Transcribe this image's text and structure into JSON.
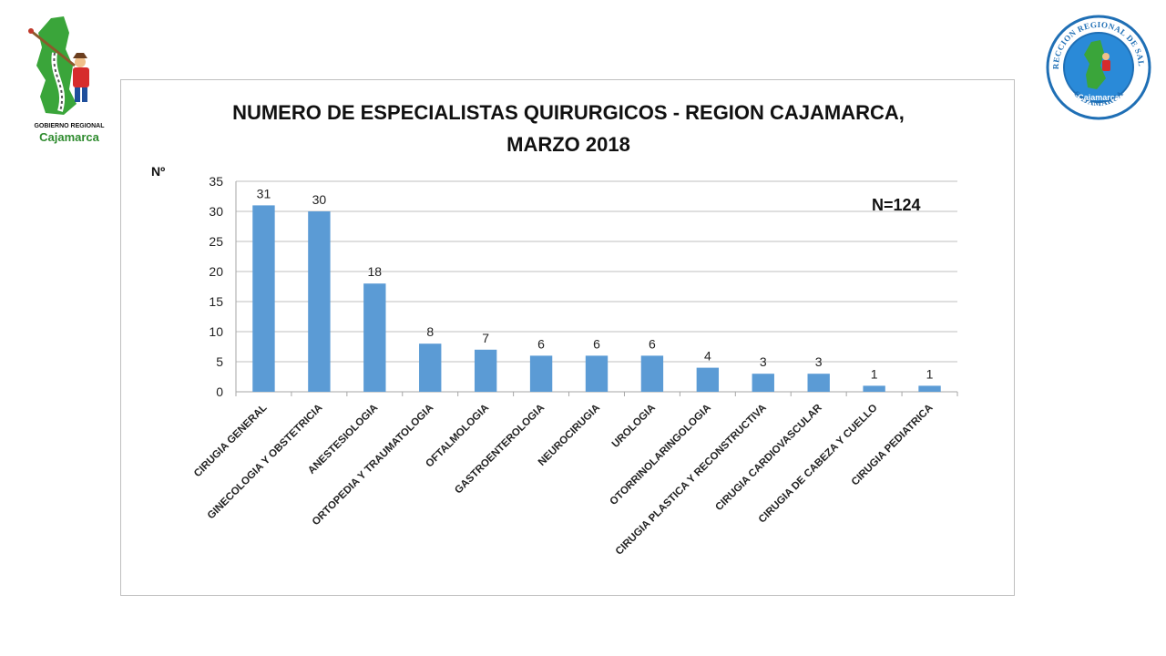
{
  "logos": {
    "left": {
      "line1": "GOBIERNO REGIONAL",
      "line2": "Cajamarca"
    },
    "right": {
      "ring_top": "DIRECCION REGIONAL DE SALUD",
      "ring_bottom": "CAJAMARCA",
      "center": "Cajamarca"
    }
  },
  "colors": {
    "bar": "#5b9bd5",
    "grid": "#bfbfbf",
    "text": "#222222",
    "logo_green": "#3aa53a",
    "logo_blue": "#1f6fb5"
  },
  "chart_data": {
    "type": "bar",
    "title": "NUMERO DE ESPECIALISTAS QUIRURGICOS - REGION CAJAMARCA, MARZO 2018",
    "title_lines": [
      "NUMERO DE ESPECIALISTAS QUIRURGICOS - REGION CAJAMARCA,",
      "MARZO 2018"
    ],
    "ylabel": "Nº",
    "xlabel": "",
    "annotation": "N=124",
    "ylim": [
      0,
      35
    ],
    "yticks": [
      0,
      5,
      10,
      15,
      20,
      25,
      30,
      35
    ],
    "grid": true,
    "categories": [
      "CIRUGIA GENERAL",
      "GINECOLOGIA Y OBSTETRICIA",
      "ANESTESIOLOGIA",
      "ORTOPEDIA Y TRAUMATOLOGIA",
      "OFTALMOLOGIA",
      "GASTROENTEROLOGIA",
      "NEUROCIRUGIA",
      "UROLOGIA",
      "OTORRINOLARINGOLOGIA",
      "CIRUGIA PLASTICA Y RECONSTRUCTIVA",
      "CIRUGIA CARDIOVASCULAR",
      "CIRUGIA DE CABEZA Y CUELLO",
      "CIRUGIA PEDIATRICA"
    ],
    "values": [
      31,
      30,
      18,
      8,
      7,
      6,
      6,
      6,
      4,
      3,
      3,
      1,
      1
    ]
  }
}
